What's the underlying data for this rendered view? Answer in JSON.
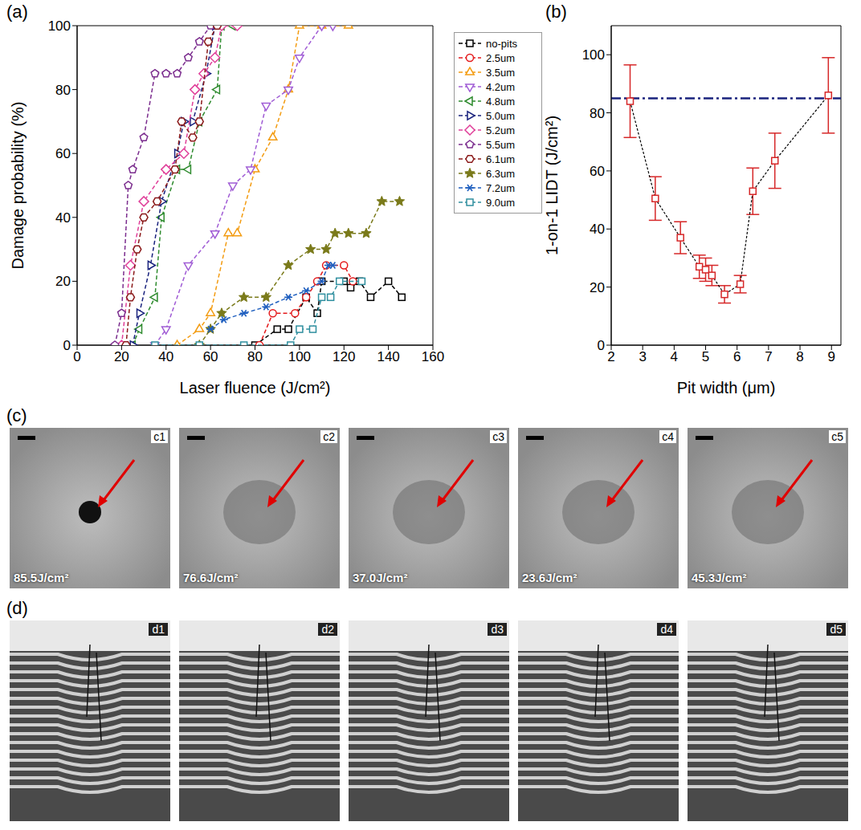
{
  "chart_data": [
    {
      "panel": "(a)",
      "type": "line",
      "x_label": "Laser fluence (J/cm²)",
      "y_label": "Damage probability (%)",
      "xlim": [
        0,
        160
      ],
      "xticks": [
        0,
        20,
        40,
        60,
        80,
        100,
        120,
        140,
        160
      ],
      "ylim": [
        0,
        100
      ],
      "yticks": [
        0,
        20,
        40,
        60,
        80,
        100
      ],
      "legend": "right",
      "series": [
        {
          "name": "no-pits",
          "color": "#000000",
          "marker": "square",
          "line_style": "dashed",
          "x": [
            80,
            90,
            95,
            103,
            108,
            110,
            120,
            123,
            127,
            132,
            140,
            146
          ],
          "values": [
            0,
            5,
            5,
            15,
            10,
            20,
            20,
            18,
            20,
            15,
            20,
            15
          ]
        },
        {
          "name": "2.5um",
          "color": "#e41a1c",
          "marker": "circle",
          "line_style": "dashed",
          "x": [
            82,
            88,
            98,
            103,
            108,
            112,
            120,
            124
          ],
          "values": [
            0,
            10,
            10,
            15,
            20,
            25,
            25,
            20
          ]
        },
        {
          "name": "3.5um",
          "color": "#f39c12",
          "marker": "triangle-up",
          "line_style": "dashed",
          "x": [
            45,
            55,
            60,
            68,
            72,
            80,
            88,
            95,
            100,
            110,
            122
          ],
          "values": [
            0,
            5,
            10,
            35,
            35,
            55,
            65,
            80,
            100,
            100,
            100
          ]
        },
        {
          "name": "4.2um",
          "color": "#a05cd5",
          "marker": "triangle-down",
          "line_style": "dashed",
          "x": [
            35,
            40,
            50,
            62,
            70,
            78,
            85,
            95,
            100,
            110,
            115
          ],
          "values": [
            0,
            5,
            25,
            35,
            50,
            55,
            75,
            80,
            90,
            100,
            100
          ]
        },
        {
          "name": "4.8um",
          "color": "#2e8b2e",
          "marker": "triangle-left",
          "line_style": "dashed",
          "x": [
            25,
            28,
            35,
            38,
            45,
            50,
            55,
            63,
            65,
            70
          ],
          "values": [
            0,
            5,
            15,
            40,
            55,
            55,
            70,
            80,
            100,
            100
          ]
        },
        {
          "name": "5.0um",
          "color": "#1a237e",
          "marker": "triangle-right",
          "line_style": "dashed",
          "x": [
            25,
            28,
            33,
            38,
            45,
            48,
            52,
            58,
            62
          ],
          "values": [
            0,
            10,
            25,
            45,
            60,
            70,
            70,
            85,
            100
          ]
        },
        {
          "name": "5.2um",
          "color": "#e0409a",
          "marker": "diamond",
          "line_style": "dashed",
          "x": [
            20,
            24,
            30,
            40,
            48,
            53,
            57,
            62,
            65,
            72
          ],
          "values": [
            0,
            25,
            45,
            55,
            60,
            80,
            85,
            90,
            100,
            100
          ]
        },
        {
          "name": "5.5um",
          "color": "#7b2d8e",
          "marker": "pentagon",
          "line_style": "dashed",
          "x": [
            17,
            20,
            23,
            25,
            30,
            35,
            40,
            45,
            50,
            55,
            60
          ],
          "values": [
            0,
            10,
            50,
            55,
            65,
            85,
            85,
            85,
            90,
            95,
            100
          ]
        },
        {
          "name": "6.1um",
          "color": "#8b1a1a",
          "marker": "hexagon",
          "line_style": "dashed",
          "x": [
            22,
            24,
            27,
            30,
            36,
            44,
            47,
            52,
            55,
            59,
            63
          ],
          "values": [
            0,
            15,
            30,
            40,
            45,
            55,
            70,
            65,
            70,
            95,
            100
          ]
        },
        {
          "name": "6.3um",
          "color": "#7a7a1a",
          "marker": "star",
          "line_style": "dashed",
          "x": [
            55,
            60,
            65,
            75,
            85,
            95,
            105,
            112,
            116,
            122,
            130,
            137,
            145
          ],
          "values": [
            0,
            5,
            10,
            15,
            15,
            25,
            30,
            30,
            35,
            35,
            35,
            45,
            45
          ]
        },
        {
          "name": "7.2um",
          "color": "#1f5fbf",
          "marker": "asterisk",
          "line_style": "dashed",
          "x": [
            60,
            66,
            75,
            85,
            95,
            103,
            110,
            113,
            115
          ],
          "values": [
            5,
            8,
            10,
            12,
            15,
            17,
            20,
            25,
            25
          ]
        },
        {
          "name": "9.0um",
          "color": "#2f8f9f",
          "marker": "square",
          "line_style": "dashed",
          "x": [
            35,
            55,
            75,
            96,
            100,
            106,
            110,
            114,
            118,
            128
          ],
          "values": [
            0,
            0,
            0,
            0,
            5,
            5,
            15,
            15,
            20,
            20
          ]
        }
      ]
    },
    {
      "panel": "(b)",
      "type": "line",
      "x_label": "Pit width (μm)",
      "y_label": "1-on-1 LIDT (J/cm²)",
      "xlim": [
        2,
        9.3
      ],
      "xticks": [
        2,
        3,
        4,
        5,
        6,
        7,
        8,
        9
      ],
      "ylim": [
        0,
        110
      ],
      "yticks": [
        0,
        20,
        40,
        60,
        80,
        100
      ],
      "color": "#d62728",
      "marker": "square",
      "line_style": "dashed",
      "x": [
        2.6,
        3.4,
        4.2,
        4.8,
        5.0,
        5.2,
        5.6,
        6.1,
        6.5,
        7.2,
        8.9
      ],
      "values": [
        84,
        50.5,
        37,
        27,
        26,
        24,
        17.5,
        21,
        53,
        63.5,
        86
      ],
      "errors": [
        12.5,
        7.5,
        5.5,
        4,
        4,
        3.5,
        3,
        3,
        8,
        9.5,
        13
      ],
      "reference_y": 85
    }
  ],
  "panel_c": {
    "panel": "(c)",
    "images": [
      {
        "label": "c1",
        "text": "85.5J/cm²"
      },
      {
        "label": "c2",
        "text": "76.6J/cm²"
      },
      {
        "label": "c3",
        "text": "37.0J/cm²"
      },
      {
        "label": "c4",
        "text": "23.6J/cm²"
      },
      {
        "label": "c5",
        "text": "45.3J/cm²"
      }
    ]
  },
  "panel_d": {
    "panel": "(d)",
    "images": [
      {
        "label": "d1"
      },
      {
        "label": "d2"
      },
      {
        "label": "d3"
      },
      {
        "label": "d4"
      },
      {
        "label": "d5"
      }
    ]
  }
}
